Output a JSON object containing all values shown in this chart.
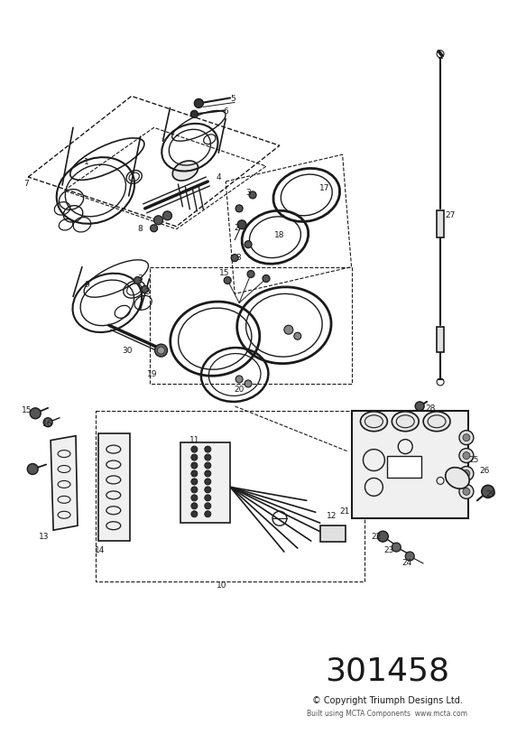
{
  "part_number": "301458",
  "copyright": "© Copyright Triumph Designs Ltd.",
  "subtitle": "Built using MCTA Components  www.mcta.com",
  "bg_color": "#ffffff",
  "line_color": "#1a1a1a",
  "fig_w": 5.83,
  "fig_h": 8.24,
  "dpi": 100
}
